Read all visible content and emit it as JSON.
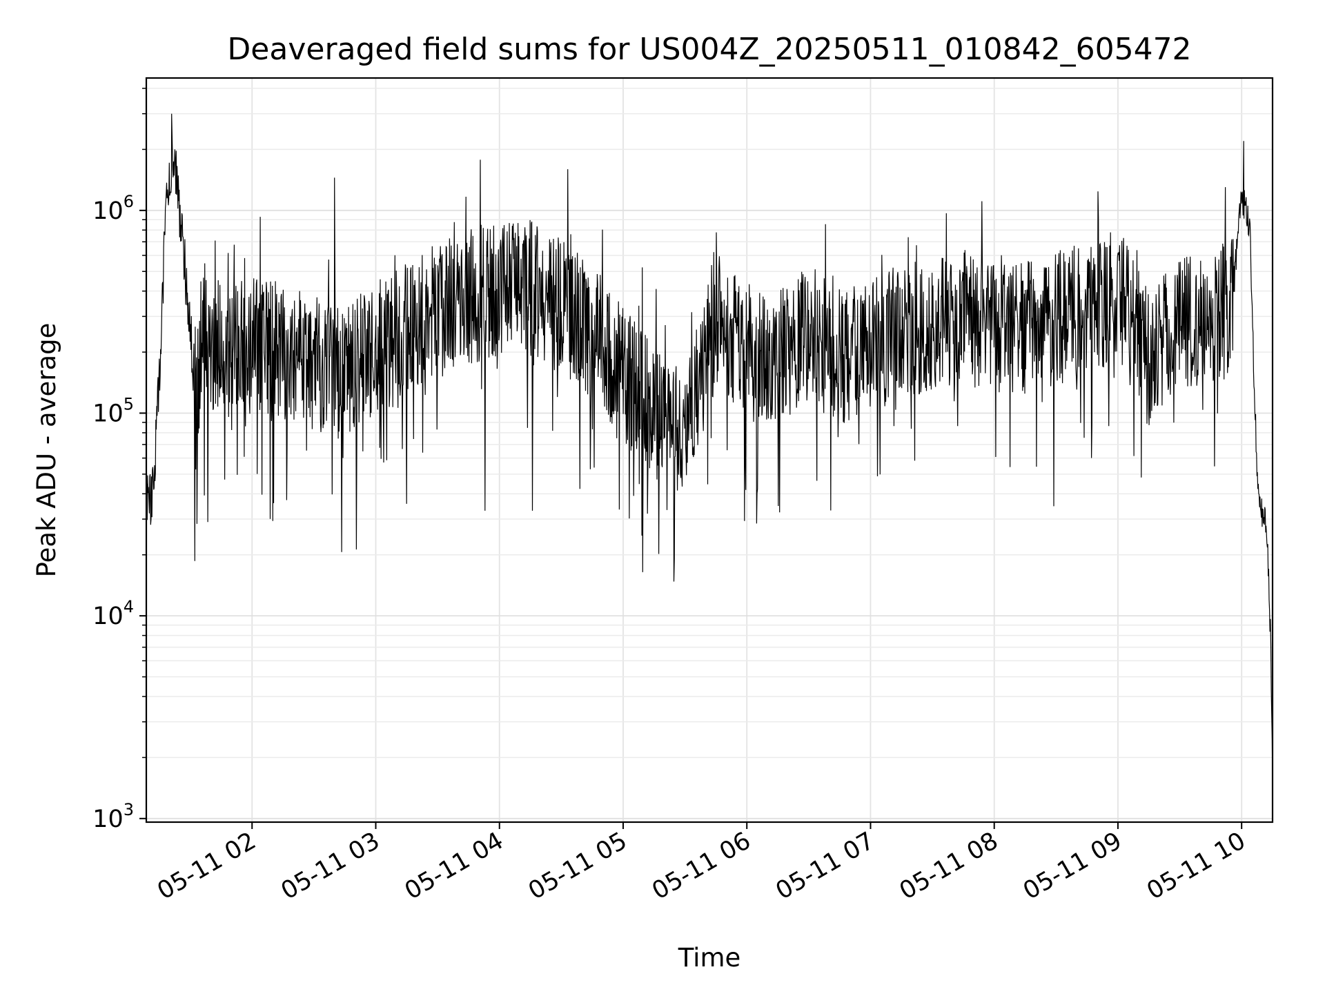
{
  "chart_data": {
    "type": "line",
    "title": "Deaveraged field sums for US004Z_20250511_010842_605472",
    "xlabel": "Time",
    "ylabel": "Peak ADU - average",
    "y_scale": "log",
    "ylim": [
      960,
      4500000
    ],
    "xlim": [
      "05-11 01:08:42",
      "05-11 10:15:00"
    ],
    "grid": true,
    "x_tick_labels": [
      "05-11 02",
      "05-11 03",
      "05-11 04",
      "05-11 05",
      "05-11 06",
      "05-11 07",
      "05-11 08",
      "05-11 09",
      "05-11 10"
    ],
    "y_tick_labels": [
      {
        "base": "10",
        "exp": "3"
      },
      {
        "base": "10",
        "exp": "4"
      },
      {
        "base": "10",
        "exp": "5"
      },
      {
        "base": "10",
        "exp": "6"
      }
    ],
    "series": [
      {
        "color": "#000000",
        "x": [
          "05-11 01:08:42",
          "05-11 01:12:00",
          "05-11 01:15:00",
          "05-11 01:18:00",
          "05-11 01:20:00",
          "05-11 01:22:00",
          "05-11 01:24:00",
          "05-11 01:27:00",
          "05-11 01:30:00",
          "05-11 01:33:00",
          "05-11 01:36:00",
          "05-11 01:40:00",
          "05-11 01:45:00",
          "05-11 01:50:00",
          "05-11 02:00:00",
          "05-11 02:15:00",
          "05-11 02:30:00",
          "05-11 02:45:00",
          "05-11 03:00:00",
          "05-11 03:15:00",
          "05-11 03:30:00",
          "05-11 03:45:00",
          "05-11 04:00:00",
          "05-11 04:15:00",
          "05-11 04:30:00",
          "05-11 04:45:00",
          "05-11 05:00:00",
          "05-11 05:15:00",
          "05-11 05:30:00",
          "05-11 05:45:00",
          "05-11 06:00:00",
          "05-11 06:15:00",
          "05-11 06:30:00",
          "05-11 06:45:00",
          "05-11 07:00:00",
          "05-11 07:15:00",
          "05-11 07:30:00",
          "05-11 07:45:00",
          "05-11 08:00:00",
          "05-11 08:15:00",
          "05-11 08:30:00",
          "05-11 08:45:00",
          "05-11 09:00:00",
          "05-11 09:15:00",
          "05-11 09:30:00",
          "05-11 09:45:00",
          "05-11 09:55:00",
          "05-11 09:58:00",
          "05-11 10:00:00",
          "05-11 10:02:00",
          "05-11 10:04:00",
          "05-11 10:06:00",
          "05-11 10:08:00",
          "05-11 10:10:00",
          "05-11 10:12:00",
          "05-11 10:14:00",
          "05-11 10:15:00"
        ],
        "y": [
          35000,
          40000,
          150000,
          900000,
          1500000,
          2000000,
          1200000,
          600000,
          250000,
          120000,
          300000,
          200000,
          250000,
          220000,
          230000,
          200000,
          180000,
          150000,
          210000,
          250000,
          320000,
          380000,
          400000,
          420000,
          330000,
          250000,
          160000,
          100000,
          80000,
          300000,
          200000,
          180000,
          250000,
          190000,
          210000,
          250000,
          280000,
          300000,
          270000,
          260000,
          290000,
          330000,
          400000,
          180000,
          300000,
          280000,
          320000,
          700000,
          1200000,
          1000000,
          800000,
          150000,
          40000,
          32000,
          30000,
          8000,
          1500
        ]
      }
    ],
    "notable_points": [
      {
        "label": "peak",
        "x": "05-11 01:21:00",
        "y": 3000000
      },
      {
        "label": "spike",
        "x": "05-11 02:40:00",
        "y": 1450000
      },
      {
        "label": "spike",
        "x": "05-11 10:01:00",
        "y": 2200000
      },
      {
        "label": "dip",
        "x": "05-11 03:53:00",
        "y": 33000
      },
      {
        "label": "dip",
        "x": "05-11 04:16:00",
        "y": 33000
      }
    ]
  }
}
